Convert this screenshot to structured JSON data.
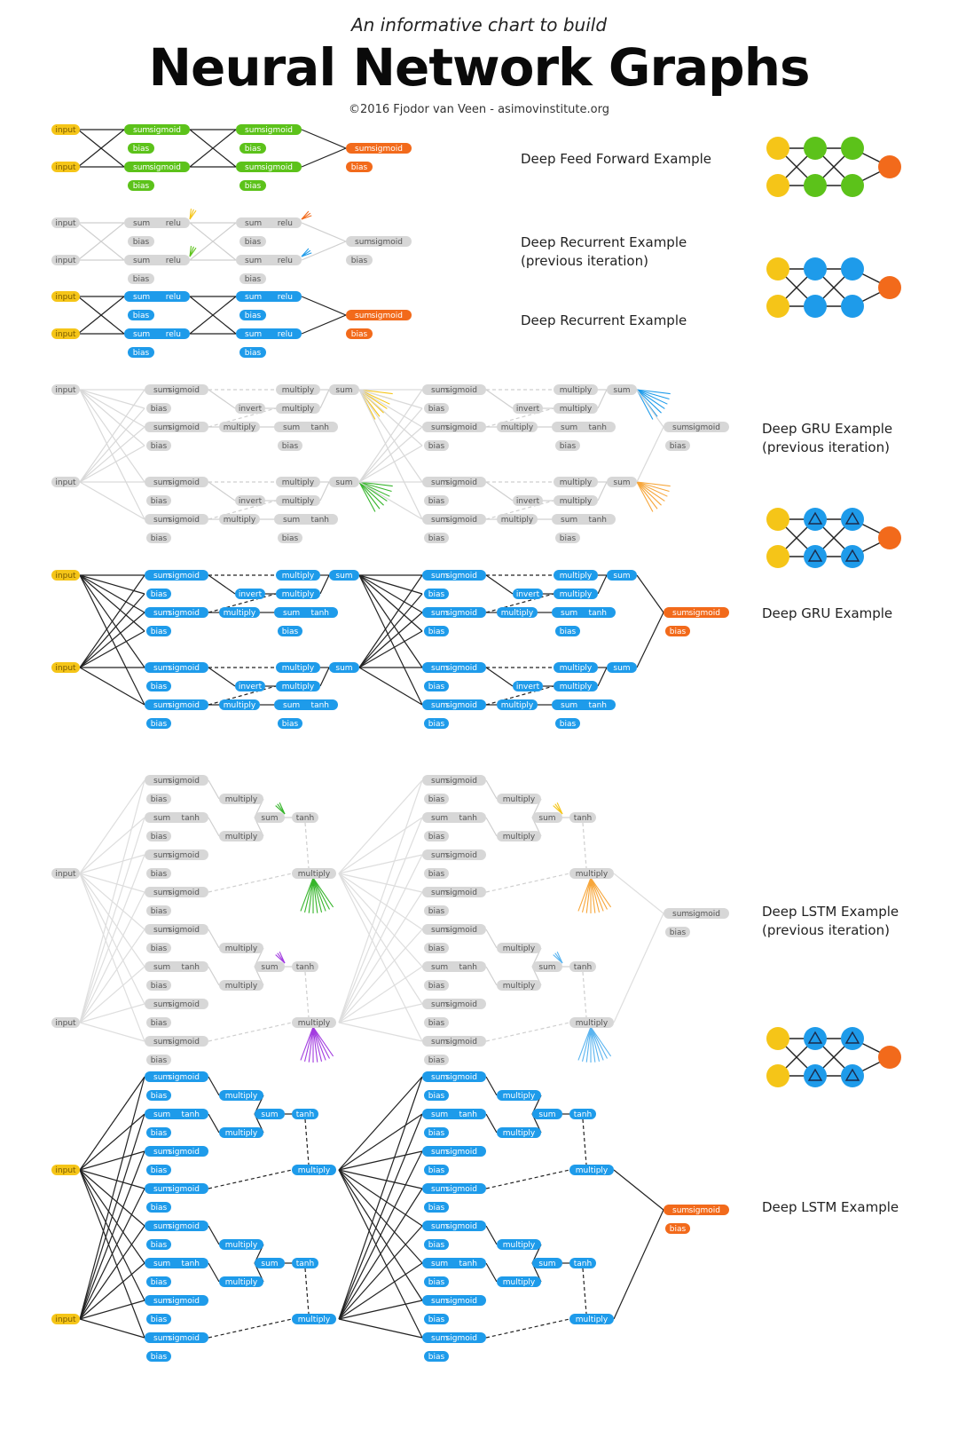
{
  "header": {
    "subtitle": "An informative chart to build",
    "title": "Neural Network Graphs",
    "credit": "©2016 Fjodor van Veen - asimovinstitute.org"
  },
  "colors": {
    "input": "#f5c518",
    "ff_hidden": "#5cc21a",
    "recurrent_hidden": "#1e9bea",
    "output": "#f26a1b",
    "inactive": "#d7d7d7",
    "lstm_green": "#36b52b",
    "lstm_purple": "#a23ce0",
    "lstm_orange": "#f7a63a",
    "lstm_blue": "#5ab4f0"
  },
  "examples": [
    {
      "id": "dff",
      "label": "Deep Feed Forward Example"
    },
    {
      "id": "rnn_prev",
      "label": "Deep Recurrent Example",
      "label2": "(previous iteration)"
    },
    {
      "id": "rnn",
      "label": "Deep Recurrent Example"
    },
    {
      "id": "gru_prev",
      "label": "Deep GRU Example",
      "label2": "(previous iteration)"
    },
    {
      "id": "gru",
      "label": "Deep GRU Example"
    },
    {
      "id": "lstm_prev",
      "label": "Deep LSTM Example",
      "label2": "(previous iteration)"
    },
    {
      "id": "lstm",
      "label": "Deep LSTM Example"
    }
  ],
  "icons": [
    {
      "name": "dff-network-icon",
      "style": "circle",
      "hidden_color": "ff_hidden"
    },
    {
      "name": "rnn-network-icon",
      "style": "circle",
      "hidden_color": "recurrent_hidden"
    },
    {
      "name": "gru-network-icon",
      "style": "triangle",
      "hidden_color": "recurrent_hidden"
    },
    {
      "name": "lstm-network-icon",
      "style": "triangle",
      "hidden_color": "recurrent_hidden"
    }
  ],
  "node_words": {
    "input": "input",
    "sum": "sum",
    "sigmoid": "sigmoid",
    "relu": "relu",
    "tanh": "tanh",
    "bias": "bias",
    "multiply": "multiply",
    "invert": "invert"
  }
}
